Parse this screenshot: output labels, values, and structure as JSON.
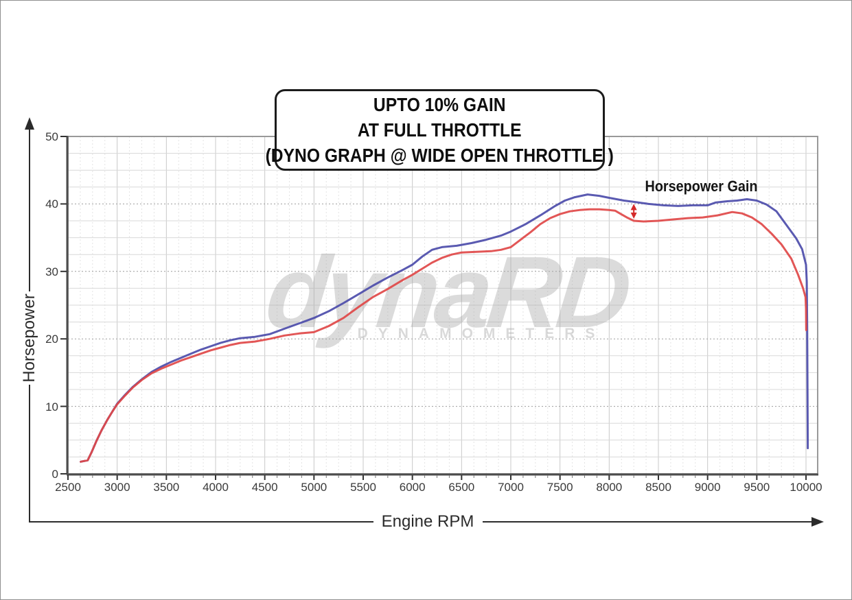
{
  "title_box": {
    "lines": [
      "UPTO 10% GAIN",
      "AT FULL THROTTLE",
      "(DYNO GRAPH @ WIDE OPEN THROTTLE )"
    ]
  },
  "watermark": {
    "main": "dynaRD",
    "sub": "DYNAMOMETERS"
  },
  "annotations": {
    "gain_label": "Horsepower Gain",
    "gain_arrow": {
      "rpm": 8250,
      "hp_from": 37.8,
      "hp_to": 40.0,
      "color": "#d42a2a"
    }
  },
  "axes": {
    "x": {
      "label": "Engine RPM",
      "min": 2500,
      "max": 10000,
      "major_step": 500,
      "minor_step": 125,
      "ticks": [
        2500,
        3000,
        3500,
        4000,
        4500,
        5000,
        5500,
        6000,
        6500,
        7000,
        7500,
        8000,
        8500,
        9000,
        9500,
        10000
      ]
    },
    "y": {
      "label": "Horsepower",
      "min": 0,
      "max": 50,
      "major_step": 10,
      "grid_step": 2.5,
      "ticks": [
        0,
        10,
        20,
        30,
        40,
        50
      ]
    }
  },
  "chart_data": {
    "type": "line",
    "title": "UPTO 10% GAIN AT FULL THROTTLE (DYNO GRAPH @ WIDE OPEN THROTTLE )",
    "xlabel": "Engine RPM",
    "ylabel": "Horsepower",
    "xlim": [
      2500,
      10120
    ],
    "ylim": [
      0,
      50
    ],
    "grid": true,
    "legend": "none",
    "series": [
      {
        "name": "blue-upgraded",
        "color": "#4c4caa",
        "points": [
          [
            2630,
            1.8
          ],
          [
            2700,
            2.0
          ],
          [
            2740,
            3.2
          ],
          [
            2790,
            4.9
          ],
          [
            2840,
            6.4
          ],
          [
            2900,
            8.0
          ],
          [
            2950,
            9.2
          ],
          [
            3000,
            10.4
          ],
          [
            3080,
            11.7
          ],
          [
            3160,
            12.9
          ],
          [
            3250,
            14.0
          ],
          [
            3350,
            15.1
          ],
          [
            3450,
            15.9
          ],
          [
            3550,
            16.6
          ],
          [
            3650,
            17.2
          ],
          [
            3750,
            17.8
          ],
          [
            3850,
            18.4
          ],
          [
            3950,
            18.9
          ],
          [
            4050,
            19.4
          ],
          [
            4150,
            19.8
          ],
          [
            4250,
            20.1
          ],
          [
            4400,
            20.3
          ],
          [
            4550,
            20.7
          ],
          [
            4700,
            21.5
          ],
          [
            4850,
            22.3
          ],
          [
            5000,
            23.1
          ],
          [
            5150,
            24.1
          ],
          [
            5300,
            25.3
          ],
          [
            5450,
            26.6
          ],
          [
            5600,
            27.9
          ],
          [
            5750,
            29.1
          ],
          [
            5900,
            30.2
          ],
          [
            6000,
            31.0
          ],
          [
            6100,
            32.2
          ],
          [
            6200,
            33.2
          ],
          [
            6300,
            33.6
          ],
          [
            6450,
            33.8
          ],
          [
            6600,
            34.2
          ],
          [
            6750,
            34.7
          ],
          [
            6900,
            35.3
          ],
          [
            7000,
            35.9
          ],
          [
            7150,
            37.0
          ],
          [
            7300,
            38.3
          ],
          [
            7450,
            39.7
          ],
          [
            7550,
            40.5
          ],
          [
            7650,
            41.0
          ],
          [
            7780,
            41.4
          ],
          [
            7900,
            41.2
          ],
          [
            8000,
            40.9
          ],
          [
            8150,
            40.5
          ],
          [
            8250,
            40.3
          ],
          [
            8400,
            40.0
          ],
          [
            8550,
            39.8
          ],
          [
            8700,
            39.7
          ],
          [
            8850,
            39.8
          ],
          [
            9000,
            39.8
          ],
          [
            9080,
            40.2
          ],
          [
            9200,
            40.4
          ],
          [
            9300,
            40.5
          ],
          [
            9400,
            40.7
          ],
          [
            9500,
            40.5
          ],
          [
            9600,
            39.9
          ],
          [
            9700,
            38.9
          ],
          [
            9800,
            36.9
          ],
          [
            9900,
            34.9
          ],
          [
            9960,
            33.3
          ],
          [
            10000,
            31.0
          ],
          [
            10008,
            28.5
          ],
          [
            10012,
            22.0
          ],
          [
            10015,
            12.0
          ],
          [
            10018,
            3.8
          ]
        ]
      },
      {
        "name": "red-baseline",
        "color": "#e04848",
        "points": [
          [
            2630,
            1.8
          ],
          [
            2700,
            2.0
          ],
          [
            2740,
            3.2
          ],
          [
            2790,
            4.9
          ],
          [
            2840,
            6.4
          ],
          [
            2900,
            8.0
          ],
          [
            2950,
            9.2
          ],
          [
            3000,
            10.3
          ],
          [
            3080,
            11.6
          ],
          [
            3160,
            12.8
          ],
          [
            3250,
            13.9
          ],
          [
            3350,
            14.9
          ],
          [
            3450,
            15.6
          ],
          [
            3550,
            16.2
          ],
          [
            3650,
            16.8
          ],
          [
            3750,
            17.3
          ],
          [
            3850,
            17.8
          ],
          [
            3950,
            18.3
          ],
          [
            4050,
            18.7
          ],
          [
            4150,
            19.1
          ],
          [
            4250,
            19.4
          ],
          [
            4400,
            19.6
          ],
          [
            4550,
            20.0
          ],
          [
            4700,
            20.5
          ],
          [
            4850,
            20.8
          ],
          [
            5000,
            21.0
          ],
          [
            5150,
            21.9
          ],
          [
            5300,
            23.1
          ],
          [
            5450,
            24.7
          ],
          [
            5600,
            26.2
          ],
          [
            5750,
            27.4
          ],
          [
            5900,
            28.7
          ],
          [
            6000,
            29.5
          ],
          [
            6100,
            30.4
          ],
          [
            6200,
            31.3
          ],
          [
            6300,
            32.0
          ],
          [
            6400,
            32.5
          ],
          [
            6500,
            32.8
          ],
          [
            6650,
            32.9
          ],
          [
            6800,
            33.0
          ],
          [
            6900,
            33.2
          ],
          [
            7000,
            33.6
          ],
          [
            7100,
            34.7
          ],
          [
            7200,
            35.8
          ],
          [
            7300,
            37.0
          ],
          [
            7400,
            37.9
          ],
          [
            7500,
            38.5
          ],
          [
            7600,
            38.9
          ],
          [
            7700,
            39.1
          ],
          [
            7800,
            39.2
          ],
          [
            7900,
            39.2
          ],
          [
            8000,
            39.1
          ],
          [
            8060,
            39.0
          ],
          [
            8120,
            38.5
          ],
          [
            8180,
            38.0
          ],
          [
            8250,
            37.5
          ],
          [
            8350,
            37.4
          ],
          [
            8500,
            37.5
          ],
          [
            8650,
            37.7
          ],
          [
            8800,
            37.9
          ],
          [
            8950,
            38.0
          ],
          [
            9100,
            38.3
          ],
          [
            9250,
            38.8
          ],
          [
            9350,
            38.6
          ],
          [
            9450,
            38.0
          ],
          [
            9550,
            37.0
          ],
          [
            9650,
            35.6
          ],
          [
            9750,
            34.0
          ],
          [
            9850,
            31.9
          ],
          [
            9920,
            29.5
          ],
          [
            9970,
            27.5
          ],
          [
            9995,
            26.2
          ],
          [
            10000,
            24.5
          ],
          [
            10002,
            21.3
          ]
        ]
      }
    ]
  },
  "style": {
    "grid_major_v": "#c8c8c8",
    "grid_minor_v": "#e3e3e3",
    "grid_light_h": "#d8d8d8",
    "grid_dotted_h": "#9b9b9b",
    "axis_dark": "#4d4d4d",
    "axis_mid": "#999999",
    "arrow_color": "#2b2b2b"
  }
}
